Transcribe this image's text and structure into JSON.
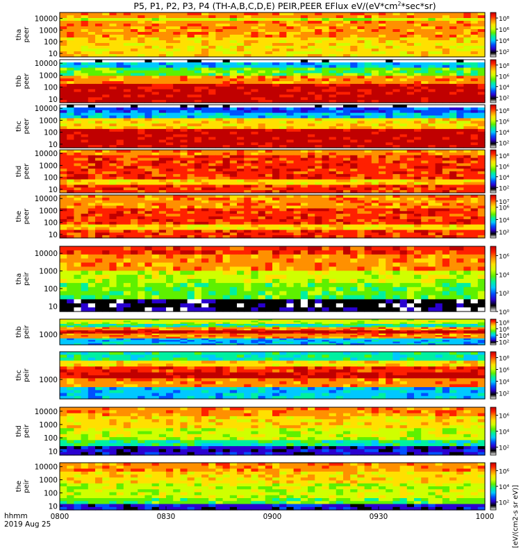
{
  "title_parts": [
    "P5, P1, P2, P3, P4 (TH-A,B,C,D,E) PEIR,PEER EFlux eV/(eV*cm",
    "2",
    "*sec*sr)"
  ],
  "chart_data": {
    "type": "heatmap",
    "title": "P5, P1, P2, P3, P4 (TH-A,B,C,D,E) PEIR,PEER EFlux eV/(eV*cm2*sec*sr)",
    "x_tick_labels": [
      "0800",
      "0830",
      "0900",
      "0930",
      "1000"
    ],
    "x_label_lines": [
      "hhmm",
      "2019 Aug 25"
    ],
    "colorbar_label": "[eV/(cm2-s sr eV)]",
    "colorbar_colors": [
      "#ffffff",
      "#000000",
      "#2a00d0",
      "#0050ff",
      "#00c8ff",
      "#00f0a0",
      "#5ef000",
      "#d0ff00",
      "#ffe000",
      "#ff9000",
      "#ff2000",
      "#c00000"
    ],
    "panels": [
      {
        "name": "tha peer",
        "label_lines": [
          "tha",
          "peer"
        ],
        "y_ticks": [
          "10000",
          "1000",
          "100",
          "10"
        ],
        "y_log_range": [
          0.7,
          4.5
        ],
        "cb_ticks": [
          "10⁸",
          "10⁶",
          "10⁴",
          "10²"
        ],
        "cb_log_range": [
          1,
          9
        ]
      },
      {
        "name": "thb peer",
        "label_lines": [
          "thb",
          "peer"
        ],
        "y_ticks": [
          "10000",
          "1000",
          "100",
          "10"
        ],
        "y_log_range": [
          0.7,
          4.3
        ],
        "cb_ticks": [
          "10⁸",
          "10⁶",
          "10⁴",
          "10²"
        ],
        "cb_log_range": [
          1,
          9
        ]
      },
      {
        "name": "thc peer",
        "label_lines": [
          "thc",
          "peer"
        ],
        "y_ticks": [
          "10000",
          "1000",
          "100",
          "10"
        ],
        "y_log_range": [
          0.7,
          4.3
        ],
        "cb_ticks": [
          "10⁸",
          "10⁶",
          "10⁴",
          "10²"
        ],
        "cb_log_range": [
          1,
          9
        ]
      },
      {
        "name": "thd peer",
        "label_lines": [
          "thd",
          "peer"
        ],
        "y_ticks": [
          "10000",
          "1000",
          "100",
          "10"
        ],
        "y_log_range": [
          0.7,
          4.3
        ],
        "cb_ticks": [
          "10⁸",
          "10⁶",
          "10⁴",
          "10²"
        ],
        "cb_log_range": [
          1,
          9
        ]
      },
      {
        "name": "the peer",
        "label_lines": [
          "the",
          "peer"
        ],
        "y_ticks": [
          "10000",
          "1000",
          "100",
          "10"
        ],
        "y_log_range": [
          0.7,
          4.3
        ],
        "cb_ticks": [
          "10⁷",
          "10⁶",
          "10⁴",
          "10²"
        ],
        "cb_log_range": [
          1,
          8
        ]
      },
      {
        "name": "tha peir",
        "label_lines": [
          "tha",
          "peir"
        ],
        "y_ticks": [
          "10000",
          "1000",
          "100",
          "10"
        ],
        "y_log_range": [
          0.7,
          4.4
        ],
        "cb_ticks": [
          "10⁶",
          "10⁴",
          "10²",
          "10⁰"
        ],
        "cb_log_range": [
          0,
          7
        ]
      },
      {
        "name": "thb peir",
        "label_lines": [
          "thb",
          "peir"
        ],
        "y_ticks": [
          "1000"
        ],
        "y_log_range": [
          2.3,
          4.0
        ],
        "cb_ticks": [
          "10⁸",
          "10⁶",
          "10⁴",
          "10²"
        ],
        "cb_log_range": [
          1,
          9
        ]
      },
      {
        "name": "thc peir",
        "label_lines": [
          "thc",
          "peir"
        ],
        "y_ticks": [
          "1000"
        ],
        "y_log_range": [
          2.3,
          4.0
        ],
        "cb_ticks": [
          "10⁸",
          "10⁶",
          "10⁴",
          "10²"
        ],
        "cb_log_range": [
          1,
          9
        ]
      },
      {
        "name": "thd peir",
        "label_lines": [
          "thd",
          "peir"
        ],
        "y_ticks": [
          "10000",
          "1000",
          "100",
          "10"
        ],
        "y_log_range": [
          0.7,
          4.3
        ],
        "cb_ticks": [
          "10⁶",
          "10⁴",
          "10²"
        ],
        "cb_log_range": [
          1,
          7
        ]
      },
      {
        "name": "the peir",
        "label_lines": [
          "the",
          "peir"
        ],
        "y_ticks": [
          "10000",
          "1000",
          "100",
          "10"
        ],
        "y_log_range": [
          0.7,
          4.3
        ],
        "cb_ticks": [
          "10⁶",
          "10⁴",
          "10²"
        ],
        "cb_log_range": [
          1,
          7
        ]
      }
    ]
  }
}
